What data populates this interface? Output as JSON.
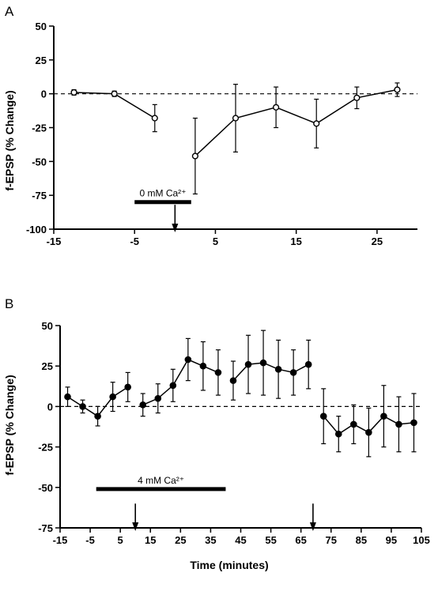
{
  "chart_data": [
    {
      "panel_label": "A",
      "type": "line",
      "marker": "open-circle",
      "ylabel": "f-EPSP (% Change)",
      "xlim": [
        -15,
        30
      ],
      "ylim": [
        -100,
        50
      ],
      "xticks": [
        -15,
        -5,
        5,
        15,
        25
      ],
      "yticks": [
        50,
        25,
        0,
        -25,
        -50,
        -75,
        -100
      ],
      "zero_line": "dashed",
      "segments": [
        [
          {
            "x": -12.5,
            "y": 1,
            "err": 2
          },
          {
            "x": -7.5,
            "y": 0,
            "err": 2
          },
          {
            "x": -2.5,
            "y": -18,
            "err": 10
          }
        ],
        [
          {
            "x": 2.5,
            "y": -46,
            "err": 28
          },
          {
            "x": 7.5,
            "y": -18,
            "err": 25
          },
          {
            "x": 12.5,
            "y": -10,
            "err": 15
          },
          {
            "x": 17.5,
            "y": -22,
            "err": 18
          },
          {
            "x": 22.5,
            "y": -3,
            "err": 8
          },
          {
            "x": 27.5,
            "y": 3,
            "err": 5
          }
        ]
      ],
      "bar": {
        "label": "0 mM Ca²⁺",
        "x_start": -5,
        "x_end": 2,
        "y": -80
      },
      "arrows": [
        {
          "x": 0
        }
      ]
    },
    {
      "panel_label": "B",
      "type": "line",
      "marker": "filled-circle",
      "ylabel": "f-EPSP (% Change)",
      "xlabel": "Time (minutes)",
      "xlim": [
        -15,
        105
      ],
      "ylim": [
        -75,
        50
      ],
      "xticks": [
        -15,
        -5,
        5,
        15,
        25,
        35,
        45,
        55,
        65,
        75,
        85,
        95,
        105
      ],
      "yticks": [
        50,
        25,
        0,
        -25,
        -50,
        -75
      ],
      "zero_line": "dashed",
      "segments": [
        [
          {
            "x": -12.5,
            "y": 6,
            "err": 6
          },
          {
            "x": -7.5,
            "y": 0,
            "err": 4
          },
          {
            "x": -2.5,
            "y": -6,
            "err": 6
          },
          {
            "x": 2.5,
            "y": 6,
            "err": 9
          },
          {
            "x": 7.5,
            "y": 12,
            "err": 9
          }
        ],
        [
          {
            "x": 12.5,
            "y": 1,
            "err": 7
          },
          {
            "x": 17.5,
            "y": 5,
            "err": 9
          },
          {
            "x": 22.5,
            "y": 13,
            "err": 10
          },
          {
            "x": 27.5,
            "y": 29,
            "err": 13
          },
          {
            "x": 32.5,
            "y": 25,
            "err": 15
          },
          {
            "x": 37.5,
            "y": 21,
            "err": 14
          }
        ],
        [
          {
            "x": 42.5,
            "y": 16,
            "err": 12
          },
          {
            "x": 47.5,
            "y": 26,
            "err": 18
          },
          {
            "x": 52.5,
            "y": 27,
            "err": 20
          },
          {
            "x": 57.5,
            "y": 23,
            "err": 18
          },
          {
            "x": 62.5,
            "y": 21,
            "err": 14
          },
          {
            "x": 67.5,
            "y": 26,
            "err": 15
          }
        ],
        [
          {
            "x": 72.5,
            "y": -6,
            "err": 17
          },
          {
            "x": 77.5,
            "y": -17,
            "err": 11
          },
          {
            "x": 82.5,
            "y": -11,
            "err": 12
          },
          {
            "x": 87.5,
            "y": -16,
            "err": 15
          },
          {
            "x": 92.5,
            "y": -6,
            "err": 19
          },
          {
            "x": 97.5,
            "y": -11,
            "err": 17
          },
          {
            "x": 102.5,
            "y": -10,
            "err": 18
          }
        ]
      ],
      "bar": {
        "label": "4 mM Ca²⁺",
        "x_start": -3,
        "x_end": 40,
        "y": -51
      },
      "arrows": [
        {
          "x": 10
        },
        {
          "x": 69
        }
      ]
    }
  ]
}
